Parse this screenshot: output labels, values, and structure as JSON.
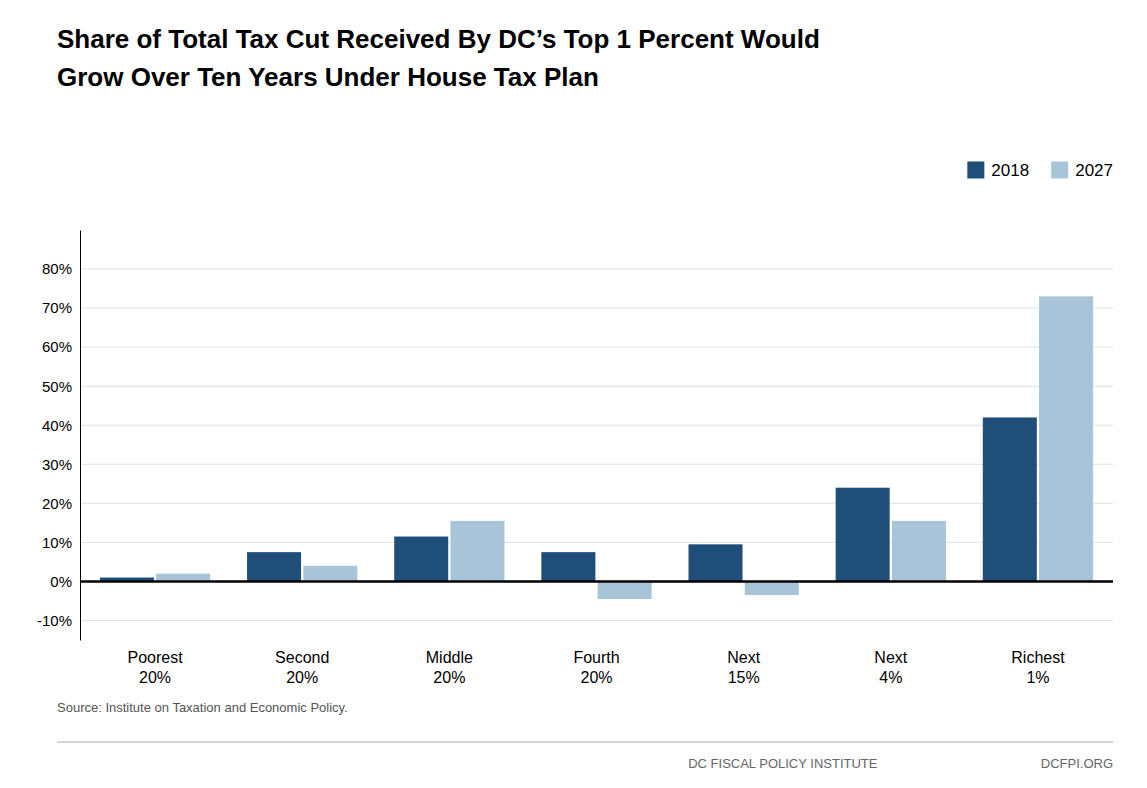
{
  "chart_data": {
    "type": "bar",
    "title": [
      "Share of Total Tax Cut Received By DC’s Top 1 Percent Would",
      "Grow Over Ten Years Under House Tax Plan"
    ],
    "categories": [
      "Poorest\n20%",
      "Second\n20%",
      "Middle\n20%",
      "Fourth\n20%",
      "Next\n15%",
      "Next\n4%",
      "Richest\n1%"
    ],
    "series": [
      {
        "name": "2018",
        "color": "#1F4E79",
        "values": [
          1.0,
          7.5,
          11.5,
          7.5,
          9.5,
          24.0,
          42.0
        ]
      },
      {
        "name": "2027",
        "color": "#A8C4D8",
        "values": [
          2.0,
          4.0,
          15.5,
          -4.5,
          -3.5,
          15.5,
          73.0
        ]
      }
    ],
    "ylim": [
      -15,
      90
    ],
    "yticks": [
      {
        "value": -10,
        "label": "-10%"
      },
      {
        "value": 0,
        "label": "0%"
      },
      {
        "value": 10,
        "label": "10%"
      },
      {
        "value": 20,
        "label": "20%"
      },
      {
        "value": 30,
        "label": "30%"
      },
      {
        "value": 40,
        "label": "40%"
      },
      {
        "value": 50,
        "label": "50%"
      },
      {
        "value": 60,
        "label": "60%"
      },
      {
        "value": 70,
        "label": "70%"
      },
      {
        "value": 80,
        "label": "80%"
      }
    ],
    "grid": true,
    "legend": "upper right",
    "annotations": [
      "Source: Institute on Taxation and Economic Policy.",
      "DC FISCAL POLICY INSTITUTE",
      "DCFPI.ORG"
    ]
  }
}
